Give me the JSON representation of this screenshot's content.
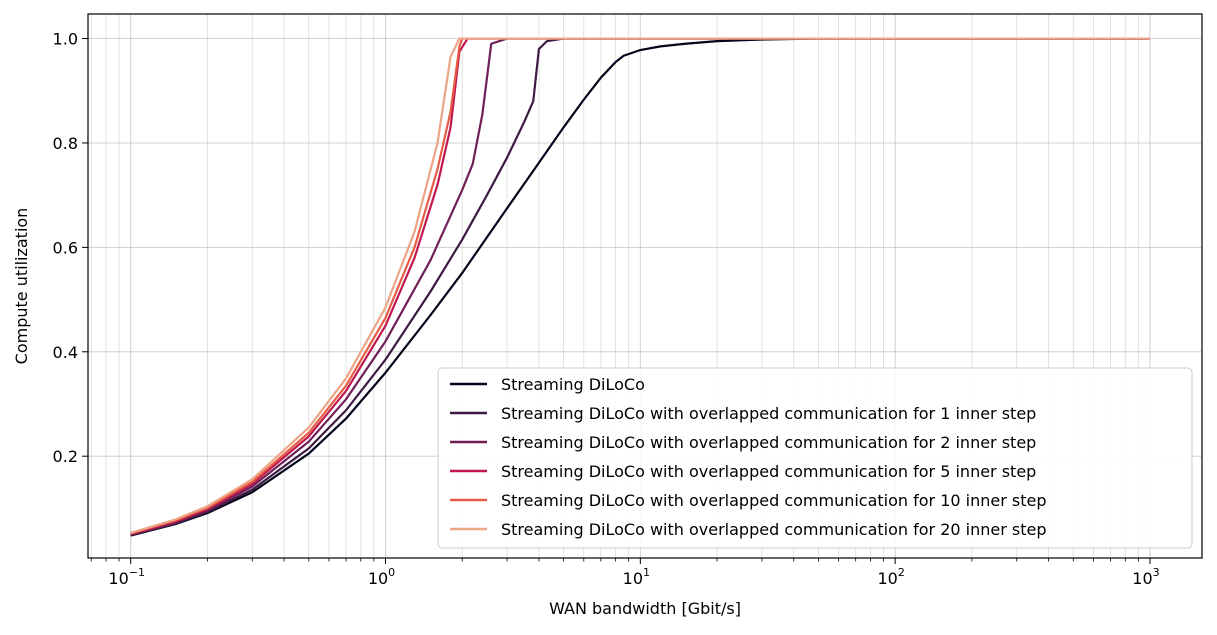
{
  "chart_data": {
    "type": "line",
    "title": "",
    "xlabel": "WAN bandwidth [Gbit/s]",
    "ylabel": "Compute utilization",
    "xscale": "log",
    "xlim": [
      0.068,
      1600
    ],
    "ylim": [
      0.005,
      1.047
    ],
    "grid": true,
    "legend_position": "lower-right",
    "x_ticks": [
      {
        "value": 0.1,
        "base": "10",
        "exp": "−1"
      },
      {
        "value": 1,
        "base": "10",
        "exp": "0"
      },
      {
        "value": 10,
        "base": "10",
        "exp": "1"
      },
      {
        "value": 100,
        "base": "10",
        "exp": "2"
      },
      {
        "value": 1000,
        "base": "10",
        "exp": "3"
      }
    ],
    "y_ticks": [
      {
        "value": 0.2,
        "label": "0.2"
      },
      {
        "value": 0.4,
        "label": "0.4"
      },
      {
        "value": 0.6,
        "label": "0.6"
      },
      {
        "value": 0.8,
        "label": "0.8"
      },
      {
        "value": 1.0,
        "label": "1.0"
      }
    ],
    "series": [
      {
        "name": "Streaming DiLoCo",
        "color": "#03051a",
        "points": [
          [
            0.1,
            0.048
          ],
          [
            0.15,
            0.07
          ],
          [
            0.2,
            0.091
          ],
          [
            0.3,
            0.131
          ],
          [
            0.5,
            0.205
          ],
          [
            0.7,
            0.272
          ],
          [
            1.0,
            0.36
          ],
          [
            1.5,
            0.47
          ],
          [
            2.0,
            0.551
          ],
          [
            3.0,
            0.675
          ],
          [
            4.0,
            0.762
          ],
          [
            5.0,
            0.83
          ],
          [
            6.0,
            0.883
          ],
          [
            7.0,
            0.925
          ],
          [
            8.0,
            0.955
          ],
          [
            8.6,
            0.967
          ],
          [
            10,
            0.978
          ],
          [
            12,
            0.985
          ],
          [
            15,
            0.99
          ],
          [
            20,
            0.995
          ],
          [
            30,
            0.998
          ],
          [
            50,
            1.0
          ],
          [
            100,
            1.0
          ],
          [
            1000,
            1.0
          ]
        ]
      },
      {
        "name": "Streaming DiLoCo with overlapped communication for 1 inner step",
        "color": "#3c1a42",
        "points": [
          [
            0.1,
            0.049
          ],
          [
            0.15,
            0.071
          ],
          [
            0.2,
            0.093
          ],
          [
            0.3,
            0.136
          ],
          [
            0.5,
            0.215
          ],
          [
            0.7,
            0.288
          ],
          [
            1.0,
            0.385
          ],
          [
            1.5,
            0.515
          ],
          [
            2.0,
            0.615
          ],
          [
            2.5,
            0.7
          ],
          [
            3.0,
            0.772
          ],
          [
            3.5,
            0.84
          ],
          [
            3.8,
            0.88
          ],
          [
            4.0,
            0.98
          ],
          [
            4.3,
            0.995
          ],
          [
            5.0,
            1.0
          ],
          [
            1000,
            1.0
          ]
        ]
      },
      {
        "name": "Streaming DiLoCo with overlapped communication for 2 inner step",
        "color": "#701f57",
        "points": [
          [
            0.1,
            0.05
          ],
          [
            0.15,
            0.073
          ],
          [
            0.2,
            0.096
          ],
          [
            0.3,
            0.142
          ],
          [
            0.5,
            0.228
          ],
          [
            0.7,
            0.309
          ],
          [
            1.0,
            0.42
          ],
          [
            1.5,
            0.575
          ],
          [
            2.0,
            0.71
          ],
          [
            2.2,
            0.76
          ],
          [
            2.4,
            0.855
          ],
          [
            2.6,
            0.99
          ],
          [
            3.0,
            1.0
          ],
          [
            1000,
            1.0
          ]
        ]
      },
      {
        "name": "Streaming DiLoCo with overlapped communication for 5 inner step",
        "color": "#c0174d",
        "points": [
          [
            0.1,
            0.051
          ],
          [
            0.15,
            0.075
          ],
          [
            0.2,
            0.099
          ],
          [
            0.3,
            0.147
          ],
          [
            0.5,
            0.238
          ],
          [
            0.7,
            0.325
          ],
          [
            1.0,
            0.45
          ],
          [
            1.3,
            0.58
          ],
          [
            1.6,
            0.72
          ],
          [
            1.8,
            0.83
          ],
          [
            1.95,
            0.975
          ],
          [
            2.1,
            1.0
          ],
          [
            1000,
            1.0
          ]
        ]
      },
      {
        "name": "Streaming DiLoCo with overlapped communication for 10 inner step",
        "color": "#e65c45",
        "points": [
          [
            0.1,
            0.052
          ],
          [
            0.15,
            0.077
          ],
          [
            0.2,
            0.101
          ],
          [
            0.3,
            0.151
          ],
          [
            0.5,
            0.245
          ],
          [
            0.7,
            0.335
          ],
          [
            1.0,
            0.465
          ],
          [
            1.3,
            0.6
          ],
          [
            1.6,
            0.75
          ],
          [
            1.8,
            0.86
          ],
          [
            1.95,
            0.985
          ],
          [
            2.0,
            1.0
          ],
          [
            1000,
            1.0
          ]
        ]
      },
      {
        "name": "Streaming DiLoCo with overlapped communication for 20 inner step",
        "color": "#eca586",
        "points": [
          [
            0.1,
            0.053
          ],
          [
            0.15,
            0.079
          ],
          [
            0.2,
            0.104
          ],
          [
            0.3,
            0.156
          ],
          [
            0.5,
            0.255
          ],
          [
            0.7,
            0.349
          ],
          [
            1.0,
            0.485
          ],
          [
            1.3,
            0.63
          ],
          [
            1.6,
            0.8
          ],
          [
            1.8,
            0.965
          ],
          [
            1.95,
            1.0
          ],
          [
            1000,
            1.0
          ]
        ]
      }
    ]
  }
}
